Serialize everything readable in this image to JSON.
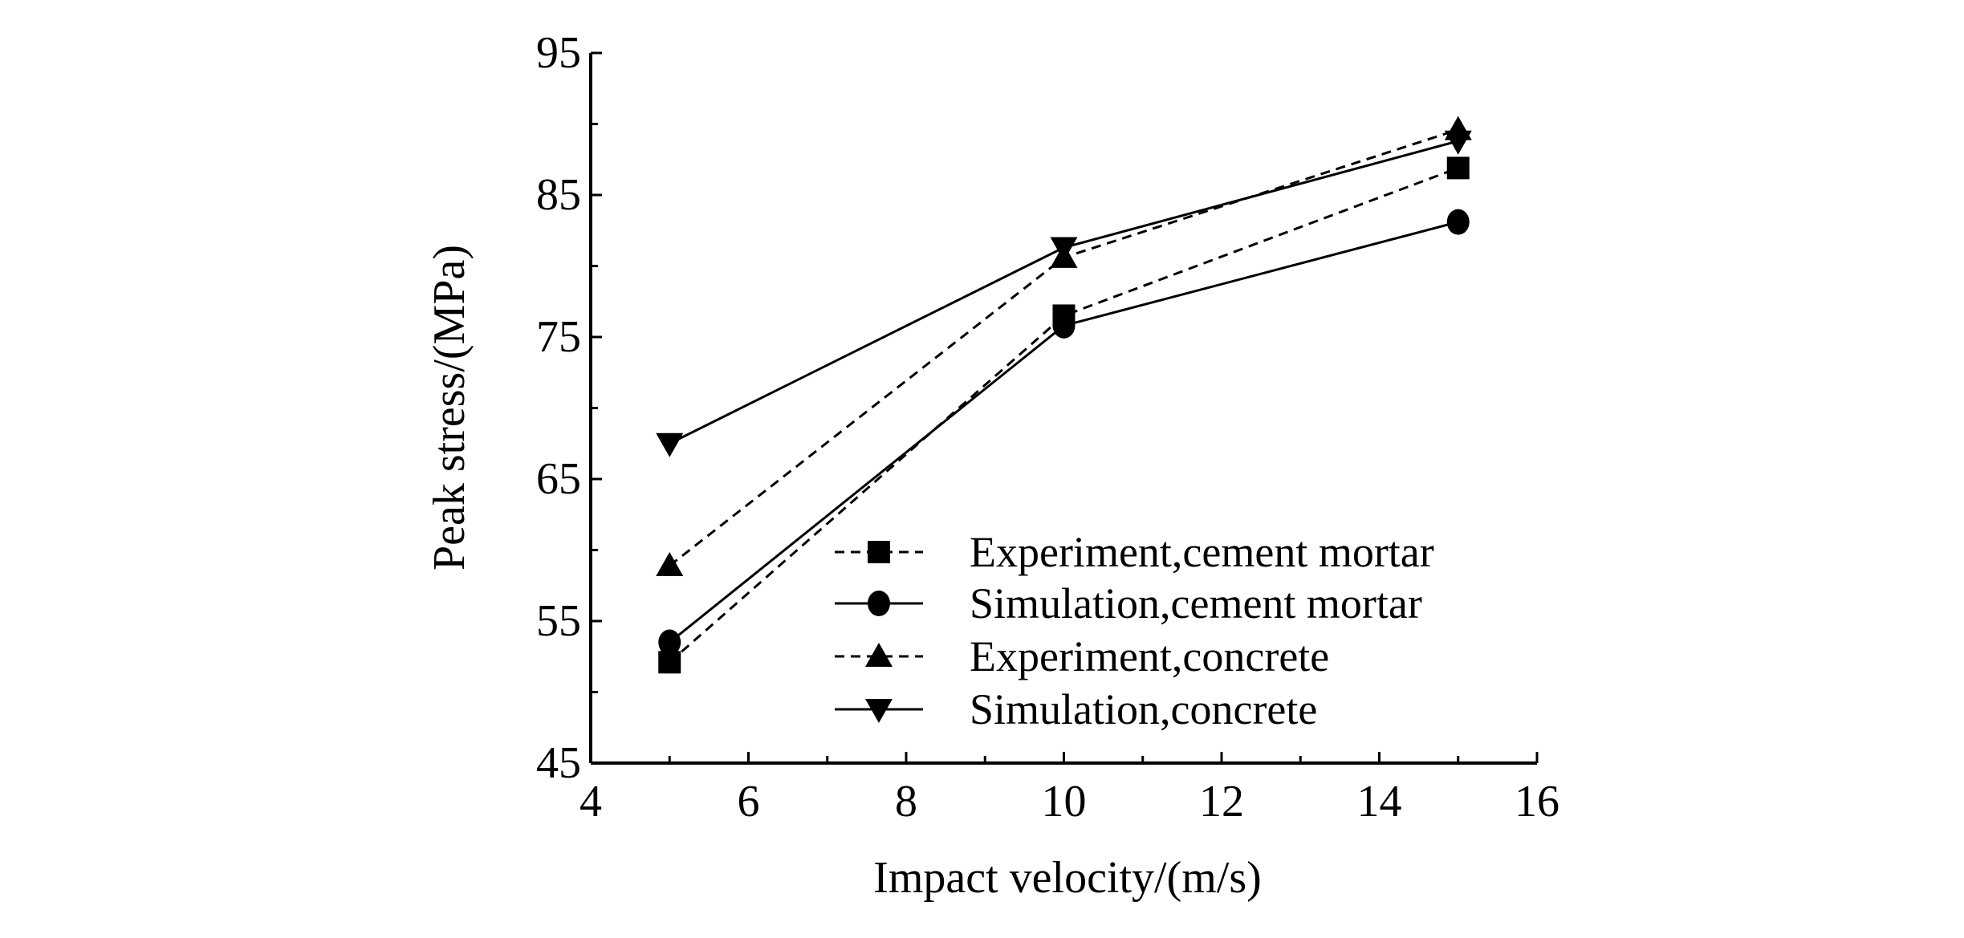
{
  "chart_data": {
    "type": "line",
    "title": "",
    "xlabel": "Impact velocity/(m/s)",
    "ylabel": "Peak stress/(MPa)",
    "xlim": [
      4,
      16
    ],
    "ylim": [
      45,
      95
    ],
    "xticks": [
      4,
      6,
      8,
      10,
      12,
      14,
      16
    ],
    "yticks": [
      45,
      55,
      65,
      75,
      85,
      95
    ],
    "grid": false,
    "legend_position": "bottom-right",
    "x": [
      5,
      10,
      15
    ],
    "series": [
      {
        "name": "Experiment,cement mortar",
        "values": [
          52.1,
          76.5,
          86.9
        ],
        "line": "dashed",
        "marker": "square"
      },
      {
        "name": "Simulation,cement mortar",
        "values": [
          53.5,
          75.8,
          83.1
        ],
        "line": "solid",
        "marker": "circle"
      },
      {
        "name": "Experiment,concrete",
        "values": [
          58.9,
          80.6,
          89.6
        ],
        "line": "dashed",
        "marker": "triangle-up"
      },
      {
        "name": "Simulation,concrete",
        "values": [
          67.5,
          81.3,
          88.8
        ],
        "line": "solid",
        "marker": "triangle-down"
      }
    ],
    "color": "#000000"
  }
}
